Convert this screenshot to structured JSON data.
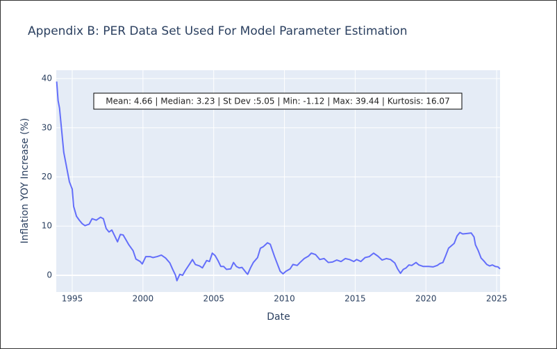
{
  "chart_data": {
    "type": "line",
    "title": "Appendix B: PER Data Set Used For Model Parameter Estimation",
    "annotation": "Mean: 4.66 | Median: 3.23 | St Dev :5.05 | Min: -1.12 | Max: 39.44 | Kurtosis: 16.07",
    "x_label": "Date",
    "y_label": "Inflation YOY Increase (%)",
    "color": "#636efa",
    "grid": true,
    "xlim": [
      1993.87,
      2025.24
    ],
    "ylim": [
      -3.4,
      41.7
    ],
    "xticks": [
      1995,
      2000,
      2005,
      2010,
      2015,
      2020,
      2025
    ],
    "yticks": [
      0,
      10,
      20,
      30,
      40
    ],
    "x": [
      1993.9,
      1994.0,
      1994.1,
      1994.3,
      1994.4,
      1994.6,
      1994.8,
      1995.0,
      1995.1,
      1995.3,
      1995.5,
      1995.7,
      1995.9,
      1996.2,
      1996.4,
      1996.7,
      1997.0,
      1997.2,
      1997.4,
      1997.6,
      1997.8,
      1998.0,
      1998.2,
      1998.4,
      1998.6,
      1998.8,
      1999.0,
      1999.3,
      1999.5,
      1999.8,
      1999.95,
      2000.2,
      2000.5,
      2000.7,
      2001.0,
      2001.3,
      2001.6,
      2001.9,
      2002.1,
      2002.3,
      2002.4,
      2002.6,
      2002.8,
      2003.0,
      2003.3,
      2003.5,
      2003.7,
      2004.0,
      2004.2,
      2004.5,
      2004.7,
      2004.9,
      2005.1,
      2005.3,
      2005.5,
      2005.7,
      2005.9,
      2006.2,
      2006.4,
      2006.6,
      2006.8,
      2007.0,
      2007.3,
      2007.4,
      2007.6,
      2007.8,
      2008.1,
      2008.3,
      2008.5,
      2008.8,
      2009.0,
      2009.3,
      2009.5,
      2009.7,
      2009.9,
      2010.1,
      2010.4,
      2010.6,
      2010.9,
      2011.1,
      2011.4,
      2011.7,
      2011.9,
      2012.2,
      2012.5,
      2012.8,
      2013.1,
      2013.4,
      2013.7,
      2014.0,
      2014.3,
      2014.6,
      2014.9,
      2015.1,
      2015.4,
      2015.7,
      2016.0,
      2016.3,
      2016.6,
      2016.9,
      2017.2,
      2017.5,
      2017.8,
      2018.0,
      2018.2,
      2018.4,
      2018.6,
      2018.8,
      2019.0,
      2019.3,
      2019.5,
      2019.8,
      2020.2,
      2020.5,
      2020.8,
      2021.0,
      2021.2,
      2021.4,
      2021.6,
      2021.8,
      2022.0,
      2022.2,
      2022.4,
      2022.6,
      2022.9,
      2023.2,
      2023.4,
      2023.5,
      2023.7,
      2023.9,
      2024.1,
      2024.3,
      2024.5,
      2024.7,
      2024.9,
      2025.1,
      2025.24
    ],
    "values": [
      39.4,
      35.5,
      34,
      28,
      25,
      22,
      19,
      17.5,
      14,
      12,
      11.2,
      10.5,
      10.1,
      10.4,
      11.5,
      11.2,
      11.8,
      11.5,
      9.5,
      8.8,
      9.2,
      8,
      6.8,
      8.3,
      8.2,
      7.2,
      6.2,
      5,
      3.3,
      2.8,
      2.3,
      3.8,
      3.8,
      3.6,
      3.8,
      4.1,
      3.5,
      2.5,
      1.2,
      0,
      -1.1,
      0.2,
      0,
      1,
      2.3,
      3.2,
      2.2,
      1.9,
      1.5,
      3,
      2.8,
      4.5,
      4,
      3,
      1.8,
      1.8,
      1.2,
      1.3,
      2.6,
      1.8,
      1.5,
      1.6,
      0.5,
      0.2,
      1.5,
      2.6,
      3.6,
      5.5,
      5.8,
      6.6,
      6.3,
      3.8,
      2.3,
      0.8,
      0.3,
      0.8,
      1.3,
      2.2,
      2,
      2.6,
      3.4,
      3.9,
      4.5,
      4.2,
      3.2,
      3.4,
      2.6,
      2.7,
      3.1,
      2.8,
      3.4,
      3.2,
      2.8,
      3.2,
      2.8,
      3.6,
      3.8,
      4.5,
      3.9,
      3.1,
      3.4,
      3.2,
      2.5,
      1.3,
      0.4,
      1.2,
      1.5,
      2.1,
      2,
      2.6,
      2.1,
      1.8,
      1.8,
      1.7,
      2,
      2.4,
      2.6,
      4,
      5.5,
      6,
      6.5,
      8,
      8.7,
      8.4,
      8.5,
      8.6,
      7.8,
      6.2,
      5,
      3.5,
      2.9,
      2.2,
      1.9,
      2.1,
      1.8,
      1.7,
      1.3
    ]
  }
}
